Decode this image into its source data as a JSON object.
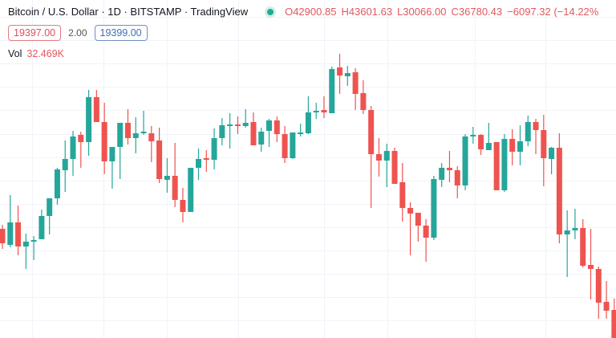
{
  "header": {
    "symbol_title": "Bitcoin / U.S. Dollar · 1D · BITSTAMP · TradingView",
    "market_status": "open",
    "open": "O42900.85",
    "high": "H43601.63",
    "low": "L30066.00",
    "close": "C36780.43",
    "change": "−6097.32 (−14.22%"
  },
  "quote": {
    "bid": "19397.00",
    "spread": "2.00",
    "ask": "19399.00"
  },
  "volume": {
    "label": "Vol",
    "value": "32.469K"
  },
  "colors": {
    "up": "#26a69a",
    "down": "#ef5350",
    "grid": "#f0f3fa"
  },
  "chart_data": {
    "type": "candlestick",
    "interval": "1D",
    "ohlc_fields": [
      "open",
      "high",
      "low",
      "close"
    ],
    "note_values": "estimated, no price axis visible",
    "candles": [
      [
        47950,
        48200,
        46700,
        47050
      ],
      [
        46950,
        50050,
        46800,
        48350
      ],
      [
        48350,
        49400,
        46300,
        46850
      ],
      [
        46850,
        47650,
        45450,
        47150
      ],
      [
        47150,
        47500,
        46000,
        47250
      ],
      [
        47300,
        49150,
        47300,
        48750
      ],
      [
        48750,
        49850,
        47600,
        49850
      ],
      [
        49850,
        51750,
        49450,
        51650
      ],
      [
        51600,
        53450,
        50250,
        52300
      ],
      [
        52300,
        54050,
        51250,
        53700
      ],
      [
        53800,
        54000,
        51750,
        53350
      ],
      [
        53350,
        56600,
        52500,
        56150
      ],
      [
        56150,
        56600,
        54600,
        54600
      ],
      [
        54600,
        55800,
        51350,
        52150
      ],
      [
        52150,
        53050,
        50450,
        53050
      ],
      [
        53050,
        54550,
        51050,
        54550
      ],
      [
        54550,
        55400,
        53200,
        53600
      ],
      [
        53600,
        54900,
        52650,
        53900
      ],
      [
        53900,
        55300,
        53800,
        54000
      ],
      [
        53900,
        54350,
        52100,
        53400
      ],
      [
        53450,
        54250,
        50800,
        51050
      ],
      [
        51000,
        52350,
        50200,
        51250
      ],
      [
        51250,
        53300,
        49300,
        49750
      ],
      [
        49750,
        50500,
        48350,
        49000
      ],
      [
        49000,
        51750,
        49000,
        51750
      ],
      [
        51750,
        52950,
        51000,
        52300
      ],
      [
        52350,
        52850,
        51500,
        52250
      ],
      [
        52250,
        54200,
        51650,
        53600
      ],
      [
        53600,
        54850,
        53150,
        54400
      ],
      [
        54400,
        55150,
        52950,
        54450
      ],
      [
        54450,
        54950,
        53850,
        54400
      ],
      [
        54350,
        55400,
        54250,
        54550
      ],
      [
        54600,
        55200,
        53150,
        53150
      ],
      [
        53200,
        54250,
        52750,
        54000
      ],
      [
        54050,
        54800,
        53050,
        54700
      ],
      [
        54700,
        54950,
        53350,
        53850
      ],
      [
        53850,
        54350,
        52050,
        52350
      ],
      [
        52350,
        53950,
        52300,
        53950
      ],
      [
        53900,
        54500,
        53700,
        53950
      ],
      [
        53900,
        56200,
        53850,
        55200
      ],
      [
        55200,
        55800,
        54800,
        55300
      ],
      [
        55350,
        56200,
        54850,
        55200
      ],
      [
        55150,
        58050,
        55150,
        57900
      ],
      [
        58000,
        58850,
        56350,
        57500
      ],
      [
        57450,
        58100,
        56850,
        57650
      ],
      [
        57700,
        57950,
        55350,
        56350
      ],
      [
        56400,
        57200,
        55100,
        55350
      ],
      [
        55350,
        55600,
        49250,
        52600
      ],
      [
        52600,
        53600,
        51200,
        52200
      ],
      [
        52200,
        53250,
        50550,
        52800
      ],
      [
        52800,
        53000,
        50750,
        50750
      ],
      [
        50850,
        52050,
        48400,
        49250
      ],
      [
        49250,
        49600,
        46300,
        48900
      ],
      [
        48950,
        48950,
        47150,
        48150
      ],
      [
        48150,
        48550,
        45900,
        47400
      ],
      [
        47400,
        51250,
        47250,
        51050
      ],
      [
        51000,
        52050,
        50550,
        51750
      ],
      [
        51750,
        52800,
        50850,
        51600
      ],
      [
        51600,
        51850,
        49850,
        50650
      ],
      [
        50650,
        53850,
        50350,
        53700
      ],
      [
        53750,
        54300,
        53250,
        53800
      ],
      [
        53800,
        53850,
        52550,
        52900
      ],
      [
        52850,
        54550,
        52850,
        53300
      ],
      [
        53350,
        53350,
        50350,
        50350
      ],
      [
        50350,
        53850,
        50250,
        53550
      ],
      [
        53550,
        54150,
        51900,
        52750
      ],
      [
        52750,
        54400,
        51900,
        53400
      ],
      [
        53400,
        55000,
        53100,
        54600
      ],
      [
        54600,
        54800,
        52600,
        54100
      ],
      [
        54100,
        55050,
        50600,
        52350
      ],
      [
        52300,
        53050,
        51350,
        53000
      ],
      [
        53000,
        53900,
        47050,
        47600
      ],
      [
        47600,
        49100,
        44950,
        47850
      ],
      [
        47850,
        49200,
        47300,
        48000
      ],
      [
        48000,
        48550,
        45550,
        45650
      ],
      [
        45700,
        47950,
        43550,
        45450
      ],
      [
        45450,
        45600,
        42350,
        43350
      ],
      [
        43400,
        44700,
        42350,
        42850
      ],
      [
        42900.85,
        43601.63,
        30066.0,
        36780.43
      ]
    ],
    "grid": true,
    "title": "Bitcoin / U.S. Dollar · 1D · BITSTAMP · TradingView"
  }
}
